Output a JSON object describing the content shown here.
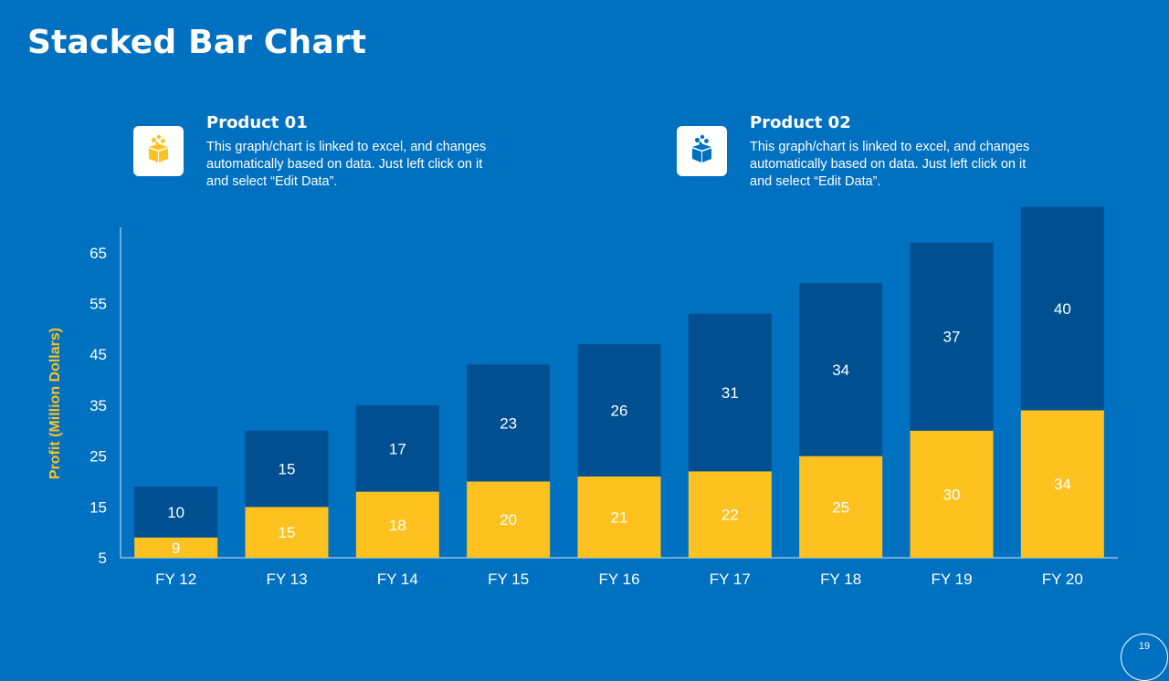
{
  "slide": {
    "title": "Stacked Bar Chart",
    "page_number": "19"
  },
  "legend": [
    {
      "name": "Product 01",
      "description": "This graph/chart is linked to excel, and changes automatically based on data. Just left click on it and select “Edit Data”.",
      "icon": "box-icon",
      "color": "#FDC220"
    },
    {
      "name": "Product 02",
      "description": "This graph/chart is linked to excel, and changes automatically based on data. Just left click on it and select “Edit Data”.",
      "icon": "box-icon",
      "color": "#004F91"
    }
  ],
  "chart_data": {
    "type": "bar",
    "stacked": true,
    "title": "",
    "xlabel": "",
    "ylabel": "Profit  (Million Dollars)",
    "categories": [
      "FY 12",
      "FY 13",
      "FY 14",
      "FY 15",
      "FY 16",
      "FY 17",
      "FY 18",
      "FY 19",
      "FY 20"
    ],
    "series": [
      {
        "name": "Product 01",
        "color": "#FDC220",
        "values": [
          9,
          15,
          18,
          20,
          21,
          22,
          25,
          30,
          34
        ]
      },
      {
        "name": "Product 02",
        "color": "#004F91",
        "values": [
          10,
          15,
          17,
          23,
          26,
          31,
          34,
          37,
          40
        ]
      }
    ],
    "yticks": [
      5,
      15,
      25,
      35,
      45,
      55,
      65
    ],
    "ylim": [
      5,
      70
    ],
    "grid": false,
    "ylabel_color": "#FDC220"
  }
}
